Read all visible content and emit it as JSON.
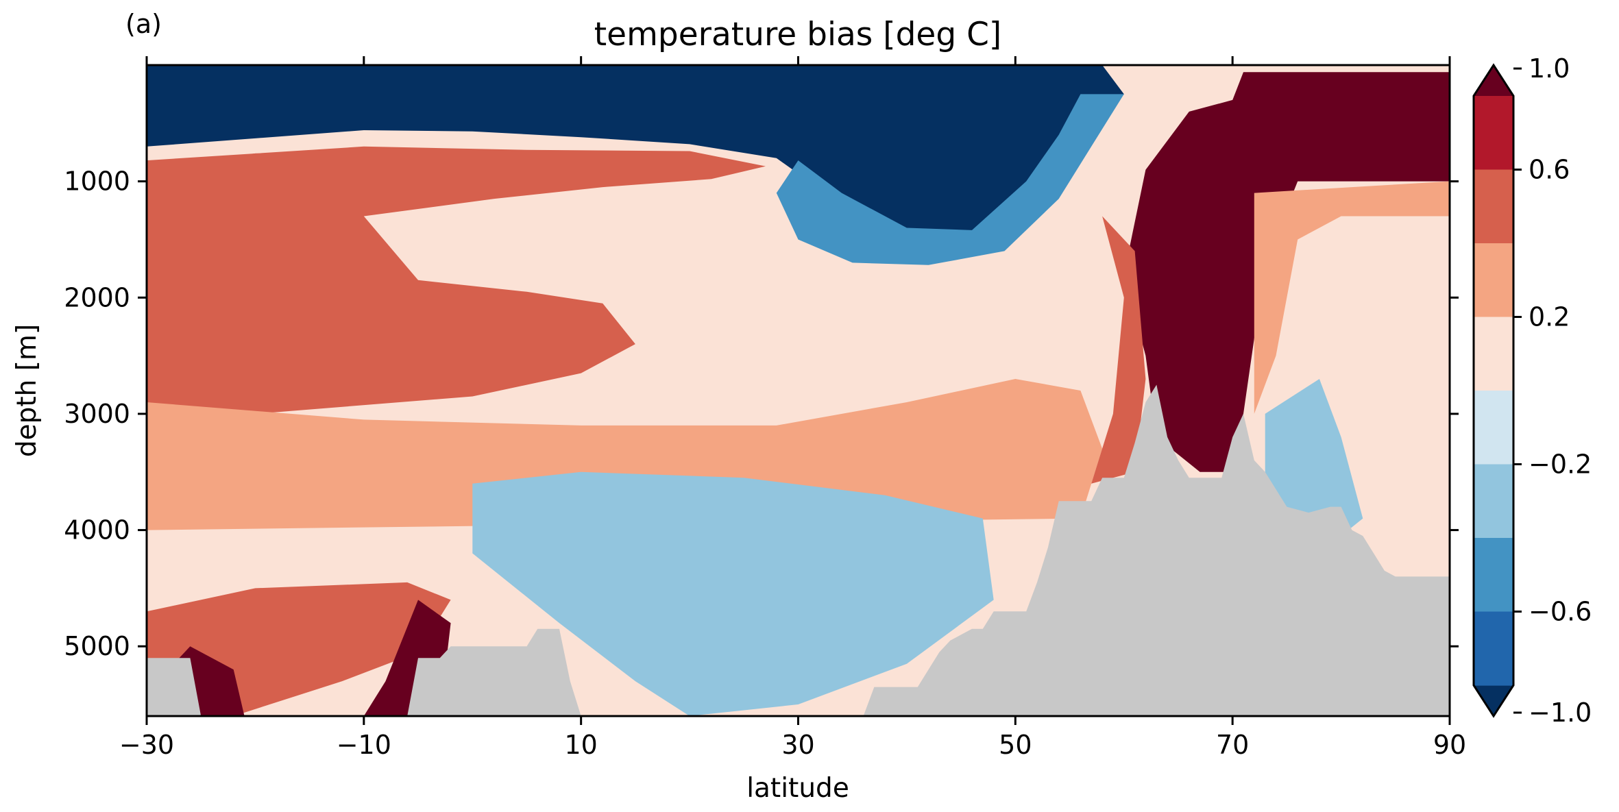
{
  "chart_data": {
    "type": "heatmap",
    "panel_label": "(a)",
    "title": "temperature bias [deg C]",
    "xlabel": "latitude",
    "ylabel": "depth [m]",
    "xlim": [
      -30,
      90
    ],
    "ylim": [
      5600,
      0
    ],
    "x_ticks": [
      -30,
      -10,
      10,
      30,
      50,
      70,
      90
    ],
    "x_tick_labels": [
      "−30",
      "−10",
      "10",
      "30",
      "50",
      "70",
      "90"
    ],
    "y_ticks": [
      1000,
      2000,
      3000,
      4000,
      5000
    ],
    "y_tick_labels": [
      "1000",
      "2000",
      "3000",
      "4000",
      "5000"
    ],
    "colorbar": {
      "levels": [
        -1.0,
        -0.8,
        -0.6,
        -0.4,
        -0.2,
        0.0,
        0.2,
        0.4,
        0.6,
        0.8,
        1.0
      ],
      "colors": [
        "#053061",
        "#2166ac",
        "#4393c3",
        "#92c5de",
        "#d1e5f0",
        "#fbe2d6",
        "#f4a582",
        "#d6604d",
        "#b2182b",
        "#67001f"
      ],
      "extend": "both",
      "tick_values": [
        1.0,
        0.6,
        0.2,
        -0.2,
        -0.6,
        -1.0
      ],
      "tick_labels": [
        "1.0",
        "0.6",
        "0.2",
        "−0.2",
        "−0.6",
        "−1.0"
      ]
    },
    "land_mask_color": "#c8c8c8",
    "bias_regions": [
      {
        "name": "upper_ocean_cold",
        "level": -1.0,
        "points": [
          [
            -30,
            0
          ],
          [
            48,
            0
          ],
          [
            58,
            0
          ],
          [
            60,
            250
          ],
          [
            56,
            700
          ],
          [
            53,
            1100
          ],
          [
            49,
            1500
          ],
          [
            44,
            1560
          ],
          [
            38,
            1580
          ],
          [
            32,
            1400
          ],
          [
            29,
            1200
          ],
          [
            31,
            1000
          ],
          [
            28,
            800
          ],
          [
            20,
            680
          ],
          [
            10,
            620
          ],
          [
            0,
            570
          ],
          [
            -10,
            560
          ],
          [
            -20,
            630
          ],
          [
            -30,
            700
          ]
        ]
      },
      {
        "name": "cold_rim",
        "level": -0.4,
        "points": [
          [
            30,
            820
          ],
          [
            34,
            1100
          ],
          [
            40,
            1400
          ],
          [
            46,
            1420
          ],
          [
            51,
            1000
          ],
          [
            54,
            600
          ],
          [
            56,
            250
          ],
          [
            60,
            250
          ],
          [
            57,
            700
          ],
          [
            54,
            1150
          ],
          [
            49,
            1600
          ],
          [
            42,
            1720
          ],
          [
            35,
            1700
          ],
          [
            30,
            1500
          ],
          [
            28,
            1100
          ]
        ]
      },
      {
        "name": "sw_upper_warm_core",
        "level": 1.0,
        "points": [
          [
            -30,
            1200
          ],
          [
            -28,
            1050
          ],
          [
            -22,
            920
          ],
          [
            -12,
            820
          ],
          [
            -5,
            840
          ],
          [
            -3,
            900
          ],
          [
            -9,
            1000
          ],
          [
            -16,
            1100
          ],
          [
            -22,
            1400
          ],
          [
            -25,
            1700
          ],
          [
            -21,
            2050
          ],
          [
            -18,
            2300
          ],
          [
            -30,
            2550
          ]
        ]
      },
      {
        "name": "deep_warm_band_upper",
        "level": 0.8,
        "points": [
          [
            -30,
            900
          ],
          [
            -20,
            760
          ],
          [
            -5,
            770
          ],
          [
            0,
            860
          ],
          [
            -8,
            980
          ],
          [
            -18,
            1180
          ],
          [
            -16,
            1500
          ],
          [
            -10,
            1900
          ],
          [
            0,
            2050
          ],
          [
            4,
            2250
          ],
          [
            2,
            2600
          ],
          [
            -12,
            2680
          ],
          [
            -30,
            2800
          ]
        ]
      },
      {
        "name": "mid_ocean_warm_tongue",
        "level": 0.6,
        "points": [
          [
            -30,
            820
          ],
          [
            -10,
            700
          ],
          [
            5,
            730
          ],
          [
            20,
            740
          ],
          [
            27,
            870
          ],
          [
            22,
            980
          ],
          [
            12,
            1050
          ],
          [
            2,
            1150
          ],
          [
            -10,
            1300
          ],
          [
            -5,
            1850
          ],
          [
            5,
            1950
          ],
          [
            12,
            2050
          ],
          [
            15,
            2400
          ],
          [
            10,
            2650
          ],
          [
            0,
            2850
          ],
          [
            -20,
            3000
          ],
          [
            -30,
            3100
          ]
        ]
      },
      {
        "name": "warm_background",
        "level": 0.4,
        "points": [
          [
            -30,
            2900
          ],
          [
            -10,
            3050
          ],
          [
            10,
            3100
          ],
          [
            28,
            3100
          ],
          [
            40,
            2900
          ],
          [
            50,
            2700
          ],
          [
            56,
            2800
          ],
          [
            58,
            3300
          ],
          [
            56,
            3900
          ],
          [
            -30,
            4000
          ]
        ]
      },
      {
        "name": "deep_cool_patch",
        "level": -0.2,
        "points": [
          [
            0,
            3600
          ],
          [
            10,
            3500
          ],
          [
            25,
            3550
          ],
          [
            38,
            3700
          ],
          [
            47,
            3900
          ],
          [
            48,
            4600
          ],
          [
            40,
            5150
          ],
          [
            30,
            5500
          ],
          [
            20,
            5600
          ],
          [
            15,
            5300
          ],
          [
            8,
            4800
          ],
          [
            0,
            4200
          ]
        ]
      },
      {
        "name": "arctic_warm_column",
        "level": 1.0,
        "points": [
          [
            71,
            60
          ],
          [
            90,
            60
          ],
          [
            90,
            1000
          ],
          [
            76,
            1000
          ],
          [
            73,
            1700
          ],
          [
            71,
            3000
          ],
          [
            70,
            3500
          ],
          [
            67,
            3500
          ],
          [
            63,
            3200
          ],
          [
            62,
            2500
          ],
          [
            60,
            1800
          ],
          [
            62,
            900
          ],
          [
            66,
            400
          ],
          [
            70,
            300
          ]
        ]
      },
      {
        "name": "arctic_warm_edge",
        "level": 0.6,
        "points": [
          [
            58,
            1300
          ],
          [
            60,
            2000
          ],
          [
            59,
            3000
          ],
          [
            57,
            3600
          ],
          [
            61,
            3500
          ],
          [
            62,
            2700
          ],
          [
            61,
            1600
          ]
        ]
      },
      {
        "name": "arctic_subsurface",
        "level": 0.4,
        "points": [
          [
            72,
            1100
          ],
          [
            90,
            1000
          ],
          [
            90,
            1300
          ],
          [
            80,
            1300
          ],
          [
            76,
            1500
          ],
          [
            74,
            2500
          ],
          [
            72,
            3000
          ]
        ]
      },
      {
        "name": "arctic_deep_cool",
        "level": -0.2,
        "points": [
          [
            73,
            3000
          ],
          [
            78,
            2700
          ],
          [
            80,
            3200
          ],
          [
            82,
            3900
          ],
          [
            78,
            4200
          ],
          [
            73,
            4100
          ]
        ]
      },
      {
        "name": "sw_abyssal_warm",
        "level": 0.6,
        "points": [
          [
            -30,
            4700
          ],
          [
            -20,
            4500
          ],
          [
            -6,
            4450
          ],
          [
            -2,
            4600
          ],
          [
            -5,
            5050
          ],
          [
            -12,
            5300
          ],
          [
            -22,
            5600
          ],
          [
            -30,
            5600
          ]
        ]
      },
      {
        "name": "sw_abyssal_hot",
        "level": 1.0,
        "points": [
          [
            -28,
            5200
          ],
          [
            -26,
            5000
          ],
          [
            -22,
            5200
          ],
          [
            -21,
            5600
          ],
          [
            -28,
            5600
          ]
        ]
      },
      {
        "name": "sw_abyssal_hot_2",
        "level": 1.0,
        "points": [
          [
            -8,
            5300
          ],
          [
            -5,
            4600
          ],
          [
            -2,
            4800
          ],
          [
            -3,
            5600
          ],
          [
            -10,
            5600
          ]
        ]
      }
    ],
    "topography": [
      [
        -30,
        5600
      ],
      [
        -30,
        5100
      ],
      [
        -26,
        5100
      ],
      [
        -25,
        5600
      ],
      [
        -6,
        5600
      ],
      [
        -5,
        5100
      ],
      [
        -3,
        5100
      ],
      [
        -2,
        5000
      ],
      [
        5,
        5000
      ],
      [
        6,
        4850
      ],
      [
        8,
        4850
      ],
      [
        9,
        5300
      ],
      [
        10,
        5600
      ],
      [
        36,
        5600
      ],
      [
        37,
        5350
      ],
      [
        41,
        5350
      ],
      [
        42,
        5200
      ],
      [
        43,
        5050
      ],
      [
        44,
        4950
      ],
      [
        46,
        4850
      ],
      [
        47,
        4850
      ],
      [
        48,
        4700
      ],
      [
        51,
        4700
      ],
      [
        52,
        4450
      ],
      [
        53,
        4150
      ],
      [
        54,
        3750
      ],
      [
        57,
        3750
      ],
      [
        58,
        3550
      ],
      [
        60,
        3550
      ],
      [
        61,
        3250
      ],
      [
        62,
        2900
      ],
      [
        63,
        2750
      ],
      [
        64,
        3200
      ],
      [
        65,
        3400
      ],
      [
        66,
        3550
      ],
      [
        69,
        3550
      ],
      [
        70,
        3200
      ],
      [
        71,
        3000
      ],
      [
        72,
        3400
      ],
      [
        73,
        3500
      ],
      [
        75,
        3800
      ],
      [
        77,
        3850
      ],
      [
        79,
        3800
      ],
      [
        80,
        3800
      ],
      [
        81,
        4000
      ],
      [
        82,
        4050
      ],
      [
        84,
        4350
      ],
      [
        85,
        4400
      ],
      [
        86,
        4400
      ],
      [
        87,
        4400
      ],
      [
        90,
        4400
      ],
      [
        90,
        5600
      ]
    ]
  }
}
